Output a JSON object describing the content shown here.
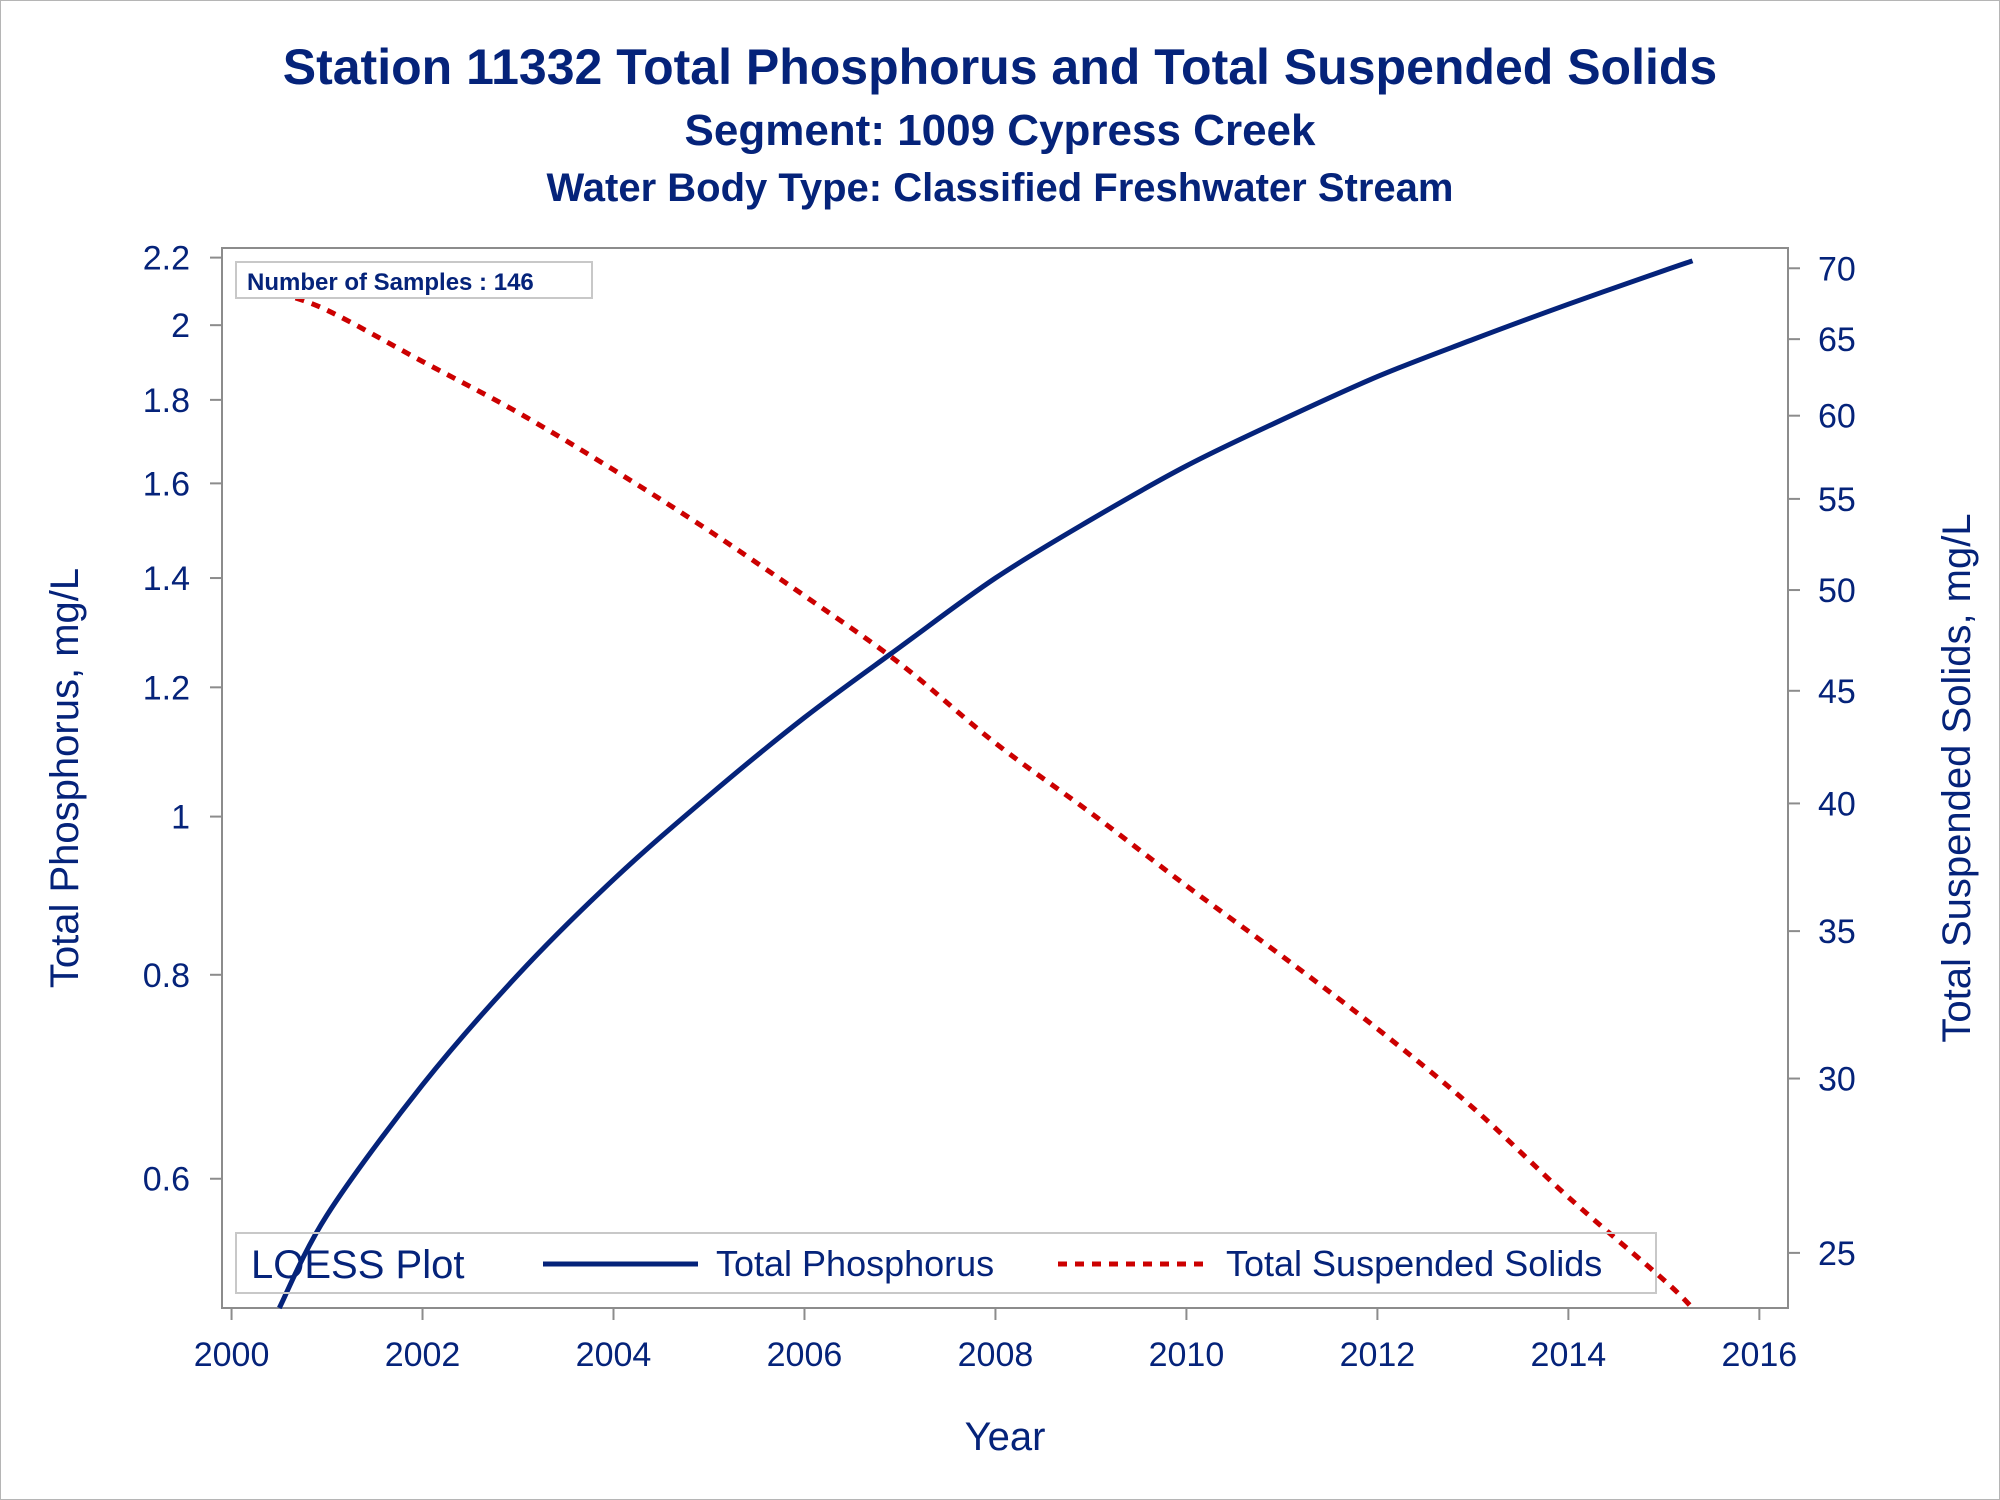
{
  "titles": {
    "title": "Station 11332  Total Phosphorus and Total Suspended Solids",
    "subtitle1": "Segment: 1009  Cypress Creek",
    "subtitle2": "Water Body Type: Classified Freshwater Stream"
  },
  "inset_label": "Number of Samples : 146",
  "legend": {
    "title": "LOESS Plot",
    "items": [
      "Total Phosphorus",
      "Total Suspended Solids"
    ]
  },
  "colors": {
    "text": "#05237a",
    "phosphorus": "#05237a",
    "tss": "#cc0000",
    "axis": "#8c8c8c"
  },
  "chart_data": {
    "type": "line",
    "title": "Station 11332  Total Phosphorus and Total Suspended Solids",
    "subtitles": [
      "Segment: 1009  Cypress Creek",
      "Water Body Type: Classified Freshwater Stream"
    ],
    "xlabel": "Year",
    "ylabel_left": "Total Phosphorus, mg/L",
    "ylabel_right": "Total Suspended Solids, mg/L",
    "y_scale": "log",
    "x_ticks": [
      "2000",
      "2002",
      "2004",
      "2006",
      "2008",
      "2010",
      "2012",
      "2014",
      "2016"
    ],
    "x_tick_values": [
      2000,
      2002,
      2004,
      2006,
      2008,
      2010,
      2012,
      2014,
      2016
    ],
    "xlim": [
      1999.9,
      2016.3
    ],
    "y_left_ticks": [
      "0.6",
      "0.8",
      "1",
      "1.2",
      "1.4",
      "1.6",
      "1.8",
      "2",
      "2.2"
    ],
    "y_left_tick_values": [
      0.6,
      0.8,
      1.0,
      1.2,
      1.4,
      1.6,
      1.8,
      2.0,
      2.2
    ],
    "ylim_left": [
      0.5,
      2.23
    ],
    "y_right_ticks": [
      "25",
      "30",
      "35",
      "40",
      "45",
      "50",
      "55",
      "60",
      "65",
      "70"
    ],
    "y_right_tick_values": [
      25,
      30,
      35,
      40,
      45,
      50,
      55,
      60,
      65,
      70
    ],
    "ylim_right": [
      23.6,
      71.5
    ],
    "legend_position": "bottom-inside",
    "grid": false,
    "series": [
      {
        "name": "Total Phosphorus",
        "axis": "left",
        "style": "solid",
        "x": [
          2000.5,
          2001,
          2002,
          2003,
          2004,
          2005,
          2006,
          2007,
          2008,
          2009,
          2010,
          2011,
          2012,
          2013,
          2014,
          2015,
          2015.3
        ],
        "y": [
          0.5,
          0.57,
          0.685,
          0.8,
          0.915,
          1.03,
          1.15,
          1.27,
          1.4,
          1.52,
          1.64,
          1.75,
          1.86,
          1.96,
          2.06,
          2.16,
          2.19
        ]
      },
      {
        "name": "Total Suspended Solids",
        "axis": "right",
        "style": "dashed",
        "x": [
          2000.5,
          2001,
          2002,
          2003,
          2004,
          2005,
          2006,
          2007,
          2008,
          2009,
          2010,
          2011,
          2012,
          2013,
          2014,
          2015,
          2015.3
        ],
        "y": [
          68.2,
          67,
          63.5,
          60.2,
          56.7,
          53.2,
          49.7,
          46.3,
          42.6,
          39.6,
          36.7,
          34.1,
          31.6,
          29.1,
          26.5,
          24.3,
          23.6
        ]
      }
    ]
  }
}
